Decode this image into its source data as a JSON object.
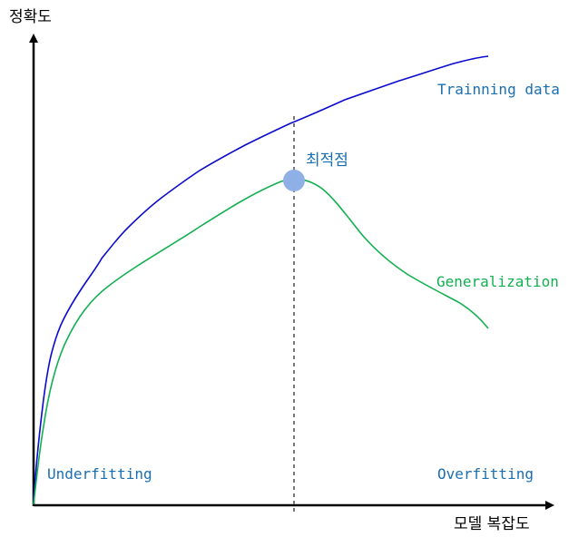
{
  "axes": {
    "y_label": "정확도",
    "x_label": "모델 복잡도"
  },
  "curves": {
    "training": {
      "label": "Trainning data",
      "color": "#0a0ad0"
    },
    "generalization": {
      "label": "Generalization",
      "color": "#12b050"
    }
  },
  "optimum": {
    "label": "최적점",
    "marker_color": "#8fb0e6",
    "guide_color": "#777777"
  },
  "regions": {
    "left": "Underfitting",
    "right": "Overfitting"
  },
  "text_color": "#1a6fb0"
}
